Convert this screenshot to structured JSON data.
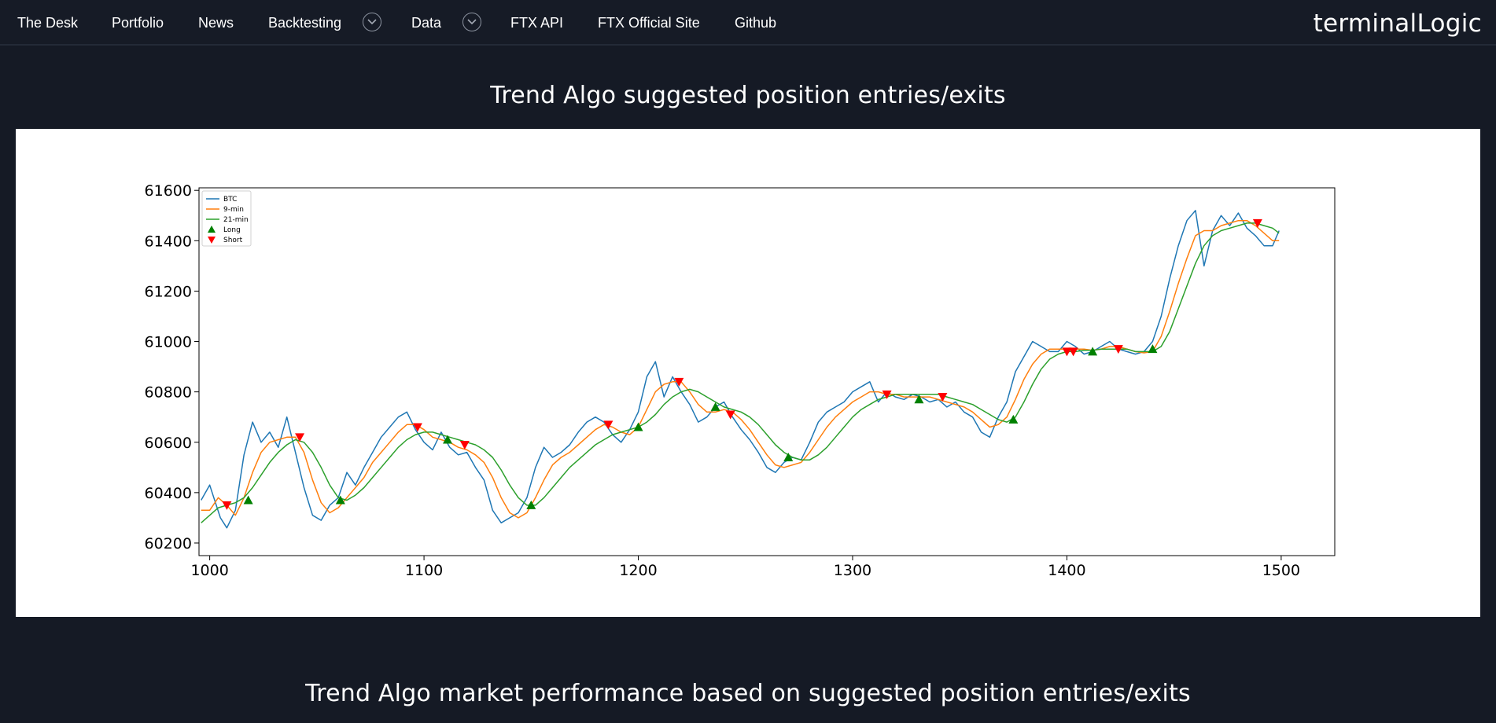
{
  "nav": {
    "items": [
      {
        "label": "The Desk",
        "dropdown": false
      },
      {
        "label": "Portfolio",
        "dropdown": false
      },
      {
        "label": "News",
        "dropdown": false
      },
      {
        "label": "Backtesting",
        "dropdown": true
      },
      {
        "label": "Data",
        "dropdown": true
      },
      {
        "label": "FTX API",
        "dropdown": false
      },
      {
        "label": "FTX Official Site",
        "dropdown": false
      },
      {
        "label": "Github",
        "dropdown": false
      }
    ],
    "brand": "terminalLogic"
  },
  "sections": {
    "chart_title": "Trend Algo suggested position entries/exits",
    "performance_title": "Trend Algo market performance based on suggested position entries/exits"
  },
  "colors": {
    "background": "#151a25",
    "btc": "#1f77b4",
    "ma9": "#ff7f0e",
    "ma21": "#2ca02c",
    "long": "#008000",
    "short": "#ff0000"
  },
  "icons": {
    "dropdown": "chevron-down-icon",
    "long_marker": "triangle-up-icon",
    "short_marker": "triangle-down-icon"
  },
  "chart_data": {
    "type": "line",
    "title": "",
    "xlabel": "",
    "ylabel": "",
    "xlim": [
      995,
      1525
    ],
    "ylim": [
      60150,
      61610
    ],
    "xticks": [
      1000,
      1100,
      1200,
      1300,
      1400,
      1500
    ],
    "yticks": [
      60200,
      60400,
      60600,
      60800,
      61000,
      61200,
      61400,
      61600
    ],
    "grid": false,
    "legend_position": "upper-left",
    "series": [
      {
        "name": "BTC",
        "x": [
          996,
          1000,
          1005,
          1008,
          1012,
          1016,
          1020,
          1024,
          1028,
          1032,
          1036,
          1040,
          1044,
          1048,
          1052,
          1056,
          1060,
          1064,
          1068,
          1072,
          1076,
          1080,
          1084,
          1088,
          1092,
          1096,
          1100,
          1104,
          1108,
          1112,
          1116,
          1120,
          1124,
          1128,
          1132,
          1136,
          1140,
          1144,
          1148,
          1152,
          1156,
          1160,
          1164,
          1168,
          1172,
          1176,
          1180,
          1184,
          1188,
          1192,
          1196,
          1200,
          1204,
          1208,
          1212,
          1216,
          1220,
          1224,
          1228,
          1232,
          1236,
          1240,
          1244,
          1248,
          1252,
          1256,
          1260,
          1264,
          1268,
          1272,
          1276,
          1280,
          1284,
          1288,
          1292,
          1296,
          1300,
          1304,
          1308,
          1312,
          1316,
          1320,
          1324,
          1328,
          1332,
          1336,
          1340,
          1344,
          1348,
          1352,
          1356,
          1360,
          1364,
          1368,
          1372,
          1376,
          1380,
          1384,
          1388,
          1392,
          1396,
          1400,
          1404,
          1408,
          1412,
          1416,
          1420,
          1424,
          1428,
          1432,
          1436,
          1440,
          1444,
          1448,
          1452,
          1456,
          1460,
          1464,
          1468,
          1472,
          1476,
          1480,
          1484,
          1488,
          1492,
          1496,
          1499
        ],
        "y": [
          60370,
          60430,
          60300,
          60260,
          60330,
          60550,
          60680,
          60600,
          60640,
          60580,
          60700,
          60560,
          60420,
          60310,
          60290,
          60350,
          60380,
          60480,
          60430,
          60500,
          60560,
          60620,
          60660,
          60700,
          60720,
          60650,
          60600,
          60570,
          60640,
          60580,
          60550,
          60560,
          60500,
          60450,
          60330,
          60280,
          60300,
          60320,
          60380,
          60500,
          60580,
          60540,
          60560,
          60590,
          60640,
          60680,
          60700,
          60680,
          60630,
          60600,
          60650,
          60720,
          60860,
          60920,
          60780,
          60860,
          60800,
          60750,
          60680,
          60700,
          60740,
          60760,
          60700,
          60650,
          60610,
          60560,
          60500,
          60480,
          60520,
          60540,
          60530,
          60600,
          60680,
          60720,
          60740,
          60760,
          60800,
          60820,
          60840,
          60760,
          60800,
          60780,
          60770,
          60790,
          60780,
          60760,
          60770,
          60740,
          60760,
          60720,
          60700,
          60640,
          60620,
          60700,
          60760,
          60880,
          60940,
          61000,
          60980,
          60960,
          60960,
          61000,
          60980,
          60950,
          60960,
          60980,
          61000,
          60970,
          60960,
          60950,
          60960,
          61000,
          61100,
          61250,
          61380,
          61480,
          61520,
          61300,
          61440,
          61500,
          61460,
          61510,
          61450,
          61420,
          61380,
          61380,
          61440
        ]
      },
      {
        "name": "9-min",
        "x": [
          996,
          1000,
          1004,
          1008,
          1012,
          1016,
          1020,
          1024,
          1028,
          1032,
          1036,
          1040,
          1044,
          1048,
          1052,
          1056,
          1060,
          1064,
          1068,
          1072,
          1076,
          1080,
          1084,
          1088,
          1092,
          1096,
          1100,
          1104,
          1108,
          1112,
          1116,
          1120,
          1124,
          1128,
          1132,
          1136,
          1140,
          1144,
          1148,
          1152,
          1156,
          1160,
          1164,
          1168,
          1172,
          1176,
          1180,
          1184,
          1188,
          1192,
          1196,
          1200,
          1204,
          1208,
          1212,
          1216,
          1220,
          1224,
          1228,
          1232,
          1236,
          1240,
          1244,
          1248,
          1252,
          1256,
          1260,
          1264,
          1268,
          1272,
          1276,
          1280,
          1284,
          1288,
          1292,
          1296,
          1300,
          1304,
          1308,
          1312,
          1316,
          1320,
          1324,
          1328,
          1332,
          1336,
          1340,
          1344,
          1348,
          1352,
          1356,
          1360,
          1364,
          1368,
          1372,
          1376,
          1380,
          1384,
          1388,
          1392,
          1396,
          1400,
          1404,
          1408,
          1412,
          1416,
          1420,
          1424,
          1428,
          1432,
          1436,
          1440,
          1444,
          1448,
          1452,
          1456,
          1460,
          1464,
          1468,
          1472,
          1476,
          1480,
          1484,
          1488,
          1492,
          1496,
          1499
        ],
        "y": [
          60330,
          60330,
          60380,
          60350,
          60310,
          60380,
          60480,
          60560,
          60600,
          60610,
          60620,
          60620,
          60560,
          60450,
          60360,
          60320,
          60340,
          60380,
          60420,
          60460,
          60520,
          60560,
          60600,
          60640,
          60670,
          60670,
          60650,
          60620,
          60610,
          60600,
          60580,
          60570,
          60550,
          60520,
          60460,
          60380,
          60320,
          60300,
          60320,
          60380,
          60450,
          60510,
          60540,
          60560,
          60590,
          60620,
          60650,
          60670,
          60660,
          60640,
          60630,
          60660,
          60730,
          60800,
          60830,
          60840,
          60840,
          60800,
          60750,
          60720,
          60720,
          60730,
          60720,
          60690,
          60650,
          60600,
          60550,
          60510,
          60500,
          60510,
          60520,
          60560,
          60610,
          60660,
          60700,
          60730,
          60760,
          60780,
          60800,
          60800,
          60790,
          60790,
          60780,
          60780,
          60780,
          60780,
          60770,
          60760,
          60750,
          60740,
          60720,
          60690,
          60660,
          60670,
          60700,
          60770,
          60850,
          60910,
          60950,
          60970,
          60970,
          60970,
          60970,
          60970,
          60965,
          60970,
          60980,
          60980,
          60970,
          60960,
          60955,
          60960,
          61020,
          61120,
          61230,
          61330,
          61420,
          61440,
          61440,
          61460,
          61470,
          61480,
          61480,
          61460,
          61430,
          61400,
          61400
        ]
      },
      {
        "name": "21-min",
        "x": [
          996,
          1000,
          1004,
          1008,
          1012,
          1016,
          1020,
          1024,
          1028,
          1032,
          1036,
          1040,
          1044,
          1048,
          1052,
          1056,
          1060,
          1064,
          1068,
          1072,
          1076,
          1080,
          1084,
          1088,
          1092,
          1096,
          1100,
          1104,
          1108,
          1112,
          1116,
          1120,
          1124,
          1128,
          1132,
          1136,
          1140,
          1144,
          1148,
          1152,
          1156,
          1160,
          1164,
          1168,
          1172,
          1176,
          1180,
          1184,
          1188,
          1192,
          1196,
          1200,
          1204,
          1208,
          1212,
          1216,
          1220,
          1224,
          1228,
          1232,
          1236,
          1240,
          1244,
          1248,
          1252,
          1256,
          1260,
          1264,
          1268,
          1272,
          1276,
          1280,
          1284,
          1288,
          1292,
          1296,
          1300,
          1304,
          1308,
          1312,
          1316,
          1320,
          1324,
          1328,
          1332,
          1336,
          1340,
          1344,
          1348,
          1352,
          1356,
          1360,
          1364,
          1368,
          1372,
          1376,
          1380,
          1384,
          1388,
          1392,
          1396,
          1400,
          1404,
          1408,
          1412,
          1416,
          1420,
          1424,
          1428,
          1432,
          1436,
          1440,
          1444,
          1448,
          1452,
          1456,
          1460,
          1464,
          1468,
          1472,
          1476,
          1480,
          1484,
          1488,
          1492,
          1496,
          1499
        ],
        "y": [
          60280,
          60310,
          60340,
          60350,
          60360,
          60380,
          60420,
          60470,
          60520,
          60560,
          60590,
          60610,
          60600,
          60560,
          60500,
          60430,
          60380,
          60370,
          60390,
          60420,
          60460,
          60500,
          60540,
          60580,
          60610,
          60630,
          60640,
          60640,
          60630,
          60620,
          60610,
          60600,
          60590,
          60570,
          60540,
          60490,
          60430,
          60380,
          60350,
          60350,
          60380,
          60420,
          60460,
          60500,
          60530,
          60560,
          60590,
          60610,
          60630,
          60640,
          60650,
          60660,
          60680,
          60710,
          60750,
          60780,
          60800,
          60810,
          60800,
          60780,
          60760,
          60740,
          60730,
          60720,
          60700,
          60670,
          60630,
          60590,
          60560,
          60540,
          60530,
          60530,
          60550,
          60580,
          60620,
          60660,
          60700,
          60730,
          60750,
          60770,
          60780,
          60790,
          60790,
          60790,
          60790,
          60790,
          60790,
          60780,
          60770,
          60760,
          60750,
          60730,
          60710,
          60690,
          60680,
          60700,
          60760,
          60830,
          60890,
          60930,
          60950,
          60960,
          60960,
          60965,
          60965,
          60970,
          60970,
          60970,
          60970,
          60960,
          60960,
          60960,
          60980,
          61040,
          61130,
          61220,
          61310,
          61380,
          61420,
          61440,
          61450,
          61460,
          61470,
          61470,
          61460,
          61450,
          61430
        ]
      },
      {
        "name": "Long",
        "marker": "^",
        "x": [
          1018,
          1061,
          1111,
          1150,
          1200,
          1236,
          1270,
          1331,
          1375,
          1412,
          1440
        ],
        "y": [
          60370,
          60370,
          60610,
          60350,
          60660,
          60740,
          60540,
          60770,
          60690,
          60960,
          60970
        ]
      },
      {
        "name": "Short",
        "marker": "v",
        "x": [
          1008,
          1042,
          1097,
          1119,
          1186,
          1219,
          1243,
          1316,
          1342,
          1400,
          1403,
          1424,
          1489
        ],
        "y": [
          60350,
          60620,
          60660,
          60590,
          60670,
          60840,
          60710,
          60790,
          60780,
          60960,
          60960,
          60970,
          61470
        ]
      }
    ]
  }
}
